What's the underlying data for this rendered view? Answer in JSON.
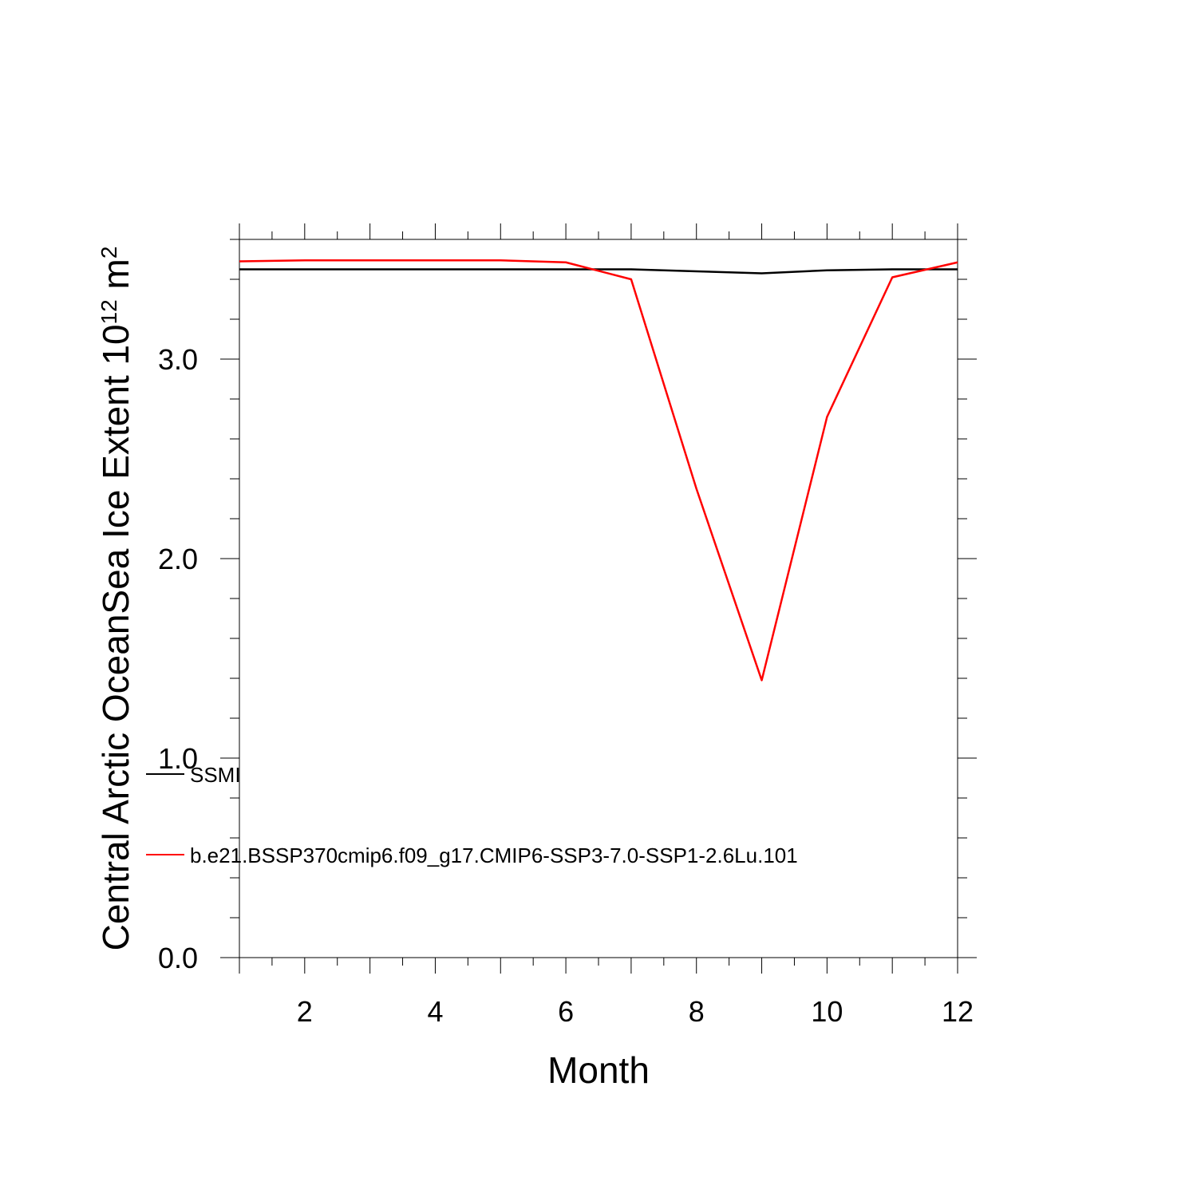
{
  "chart_data": {
    "type": "line",
    "xlabel": "Month",
    "ylabel": {
      "prefix": "Central Arctic OceanSea Ice Extent 10",
      "exponent1": "12",
      "middle": " m",
      "exponent2": "2"
    },
    "xlim": [
      1,
      12
    ],
    "ylim": [
      0,
      3.6
    ],
    "x_ticks": [
      2,
      4,
      6,
      8,
      10,
      12
    ],
    "x_tick_labels": [
      "2",
      "4",
      "6",
      "8",
      "10",
      "12"
    ],
    "y_ticks": [
      0,
      1,
      2,
      3
    ],
    "y_tick_labels": [
      "0.0",
      "1.0",
      "2.0",
      "3.0"
    ],
    "x": [
      1,
      2,
      3,
      4,
      5,
      6,
      7,
      8,
      9,
      10,
      11,
      12
    ],
    "series": [
      {
        "name": "SSMI",
        "color": "#000000",
        "values": [
          3.45,
          3.45,
          3.45,
          3.45,
          3.45,
          3.45,
          3.45,
          3.44,
          3.43,
          3.445,
          3.45,
          3.45
        ]
      },
      {
        "name": "b.e21.BSSP370cmip6.f09_g17.CMIP6-SSP3-7.0-SSP1-2.6Lu.101",
        "color": "#ff0000",
        "values": [
          3.49,
          3.495,
          3.495,
          3.495,
          3.495,
          3.485,
          3.4,
          2.35,
          1.39,
          2.71,
          3.41,
          3.485
        ]
      }
    ],
    "legend_position": "lower-left"
  }
}
